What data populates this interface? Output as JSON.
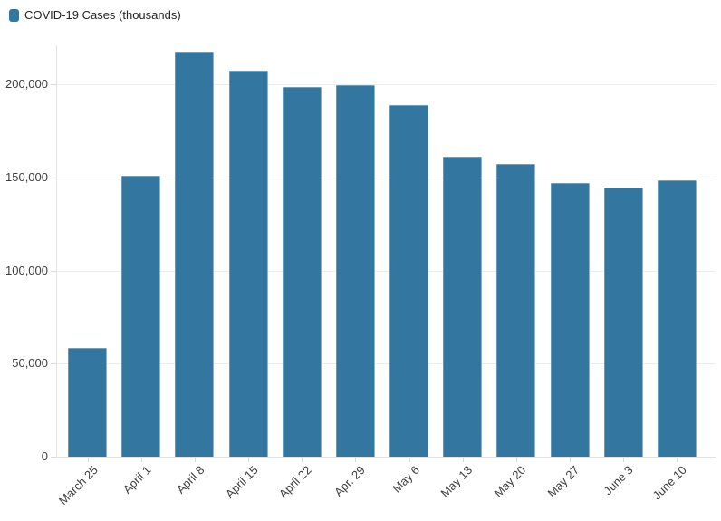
{
  "legend": {
    "label": "COVID-19 Cases (thousands)"
  },
  "chart_data": {
    "type": "bar",
    "title": "",
    "series_name": "COVID-19 Cases (thousands)",
    "categories": [
      "March 25",
      "April 1",
      "April 8",
      "April 15",
      "April 22",
      "Apr. 29",
      "May 6",
      "May 13",
      "May 20",
      "May 27",
      "June 3",
      "June 10"
    ],
    "values": [
      58300,
      150800,
      217400,
      207200,
      198500,
      199300,
      188700,
      161000,
      157400,
      147200,
      144400,
      148400
    ],
    "xlabel": "",
    "ylabel": "",
    "ylim": [
      0,
      225000
    ],
    "yticks": [
      0,
      50000,
      100000,
      150000,
      200000
    ],
    "ytick_labels": [
      "0",
      "50,000",
      "100,000",
      "150,000",
      "200,000"
    ],
    "grid": true,
    "legend_position": "top-left",
    "x_label_rotation": -45
  },
  "colors": {
    "accent": "#33769f",
    "grid": "#ededed",
    "axis": "#e2e2e2",
    "tick": "#d9d9d9",
    "text": "#3d3d3d"
  }
}
